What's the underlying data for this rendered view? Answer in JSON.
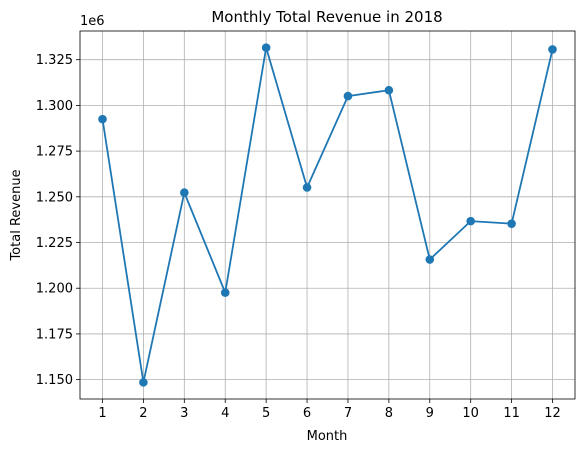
{
  "chart_data": {
    "type": "line",
    "title": "Monthly Total Revenue in 2018",
    "xlabel": "Month",
    "ylabel": "Total Revenue",
    "y_offset_label": "1e6",
    "x": [
      1,
      2,
      3,
      4,
      5,
      6,
      7,
      8,
      9,
      10,
      11,
      12
    ],
    "x_tick_labels": [
      "1",
      "2",
      "3",
      "4",
      "5",
      "6",
      "7",
      "8",
      "9",
      "10",
      "11",
      "12"
    ],
    "series": [
      {
        "values": [
          1.2925,
          1.1485,
          1.2523,
          1.1976,
          1.3316,
          1.2551,
          1.3051,
          1.3083,
          1.2157,
          1.2367,
          1.2353,
          1.3306
        ],
        "color": "#1f77b4",
        "marker": "circle"
      }
    ],
    "y_ticks": [
      1.15,
      1.175,
      1.2,
      1.225,
      1.25,
      1.275,
      1.3,
      1.325
    ],
    "y_tick_labels": [
      "1.150",
      "1.175",
      "1.200",
      "1.225",
      "1.250",
      "1.275",
      "1.300",
      "1.325"
    ],
    "xlim": [
      0.45,
      12.55
    ],
    "ylim": [
      1.1394,
      1.3407
    ],
    "grid": true
  }
}
